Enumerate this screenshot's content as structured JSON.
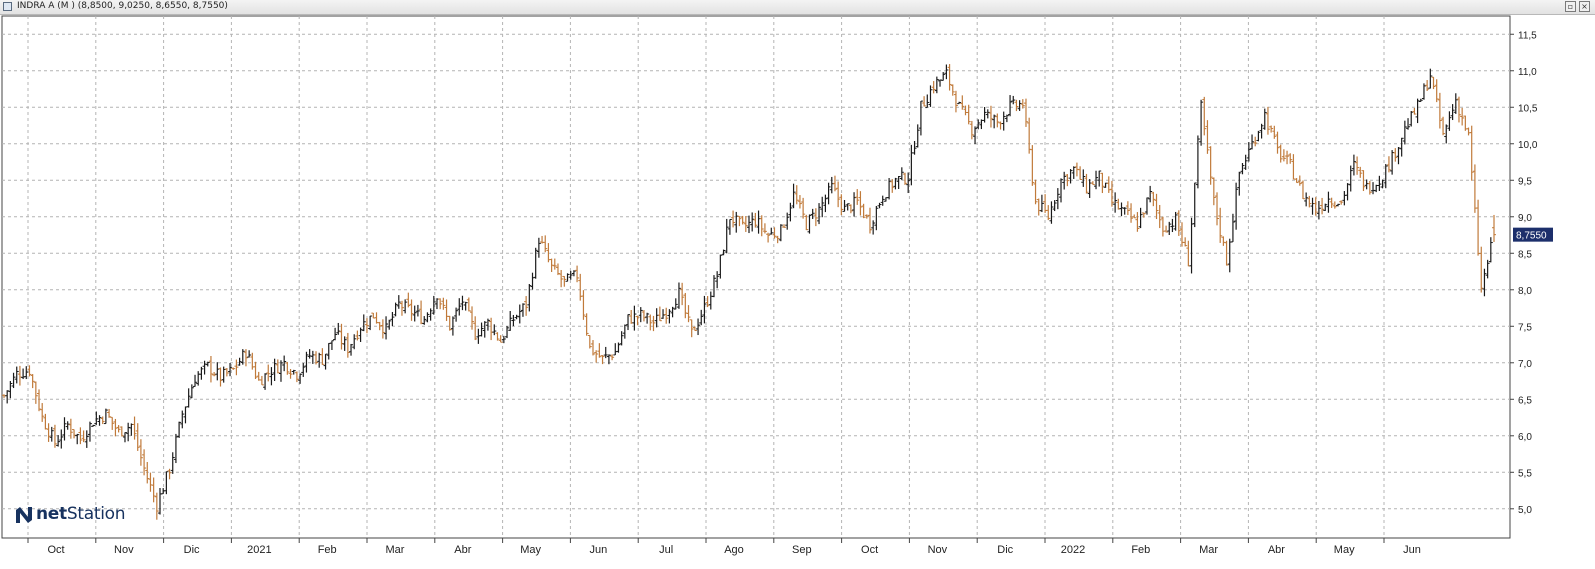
{
  "window": {
    "title": "INDRA A (M ) (8,8500, 9,0250, 8,6550, 8,7550)",
    "restore_label": "▫",
    "close_label": "×"
  },
  "logo": {
    "icon": "netstation-n-logo",
    "prefix": "net",
    "suffix": "Station"
  },
  "colors": {
    "up": "#1a1a1a",
    "down": "#c07a3a",
    "grid": "#b4b4b4",
    "last_price_bg": "#1c2f6b",
    "last_price_fg": "#ffffff"
  },
  "chart_data": {
    "type": "ohlc",
    "instrument": "INDRA A",
    "last": {
      "open": 8.85,
      "high": 9.025,
      "low": 8.655,
      "close": 8.755,
      "label": "8,7550"
    },
    "y_ticks": [
      "11,5",
      "11,0",
      "10,5",
      "10,0",
      "9,5",
      "9,0",
      "8,5",
      "8,0",
      "7,5",
      "7,0",
      "6,5",
      "6,0",
      "5,5",
      "5,0"
    ],
    "ylim": [
      4.6,
      11.75
    ],
    "x_ticks": [
      "Oct",
      "Nov",
      "Dic",
      "2021",
      "Feb",
      "Mar",
      "Abr",
      "May",
      "Jun",
      "Jul",
      "Ago",
      "Sep",
      "Oct",
      "Nov",
      "Dic",
      "2022",
      "Feb",
      "Mar",
      "Abr",
      "May",
      "Jun"
    ],
    "grid": true,
    "bars_per_month": 21,
    "closes": [
      6.55,
      6.85,
      6.9,
      6.25,
      5.9,
      6.15,
      5.95,
      6.2,
      6.3,
      6.05,
      6.15,
      5.55,
      5.05,
      5.55,
      6.3,
      6.8,
      6.95,
      6.8,
      6.9,
      7.15,
      6.75,
      6.9,
      7.0,
      6.85,
      7.1,
      7.05,
      7.4,
      7.2,
      7.5,
      7.65,
      7.45,
      7.8,
      7.7,
      7.6,
      7.95,
      7.5,
      7.85,
      7.4,
      7.55,
      7.3,
      7.6,
      7.8,
      8.7,
      8.3,
      8.1,
      8.2,
      7.2,
      7.05,
      7.15,
      7.6,
      7.65,
      7.55,
      7.7,
      7.95,
      7.4,
      7.75,
      8.2,
      9.0,
      8.85,
      8.95,
      8.75,
      8.8,
      9.3,
      8.9,
      9.1,
      9.4,
      9.1,
      9.2,
      8.9,
      9.3,
      9.5,
      9.55,
      10.5,
      10.8,
      10.95,
      10.5,
      10.2,
      10.4,
      10.3,
      10.5,
      10.55,
      9.2,
      9.0,
      9.5,
      9.65,
      9.4,
      9.55,
      9.2,
      9.05,
      8.9,
      9.3,
      8.85,
      8.95,
      8.4,
      10.5,
      9.2,
      8.4,
      9.6,
      10.0,
      10.4,
      9.9,
      9.7,
      9.3,
      9.1,
      9.25,
      9.2,
      9.7,
      9.4,
      9.5,
      9.8,
      10.2,
      10.5,
      10.95,
      10.1,
      10.6,
      10.1,
      8.0,
      8.755
    ]
  }
}
